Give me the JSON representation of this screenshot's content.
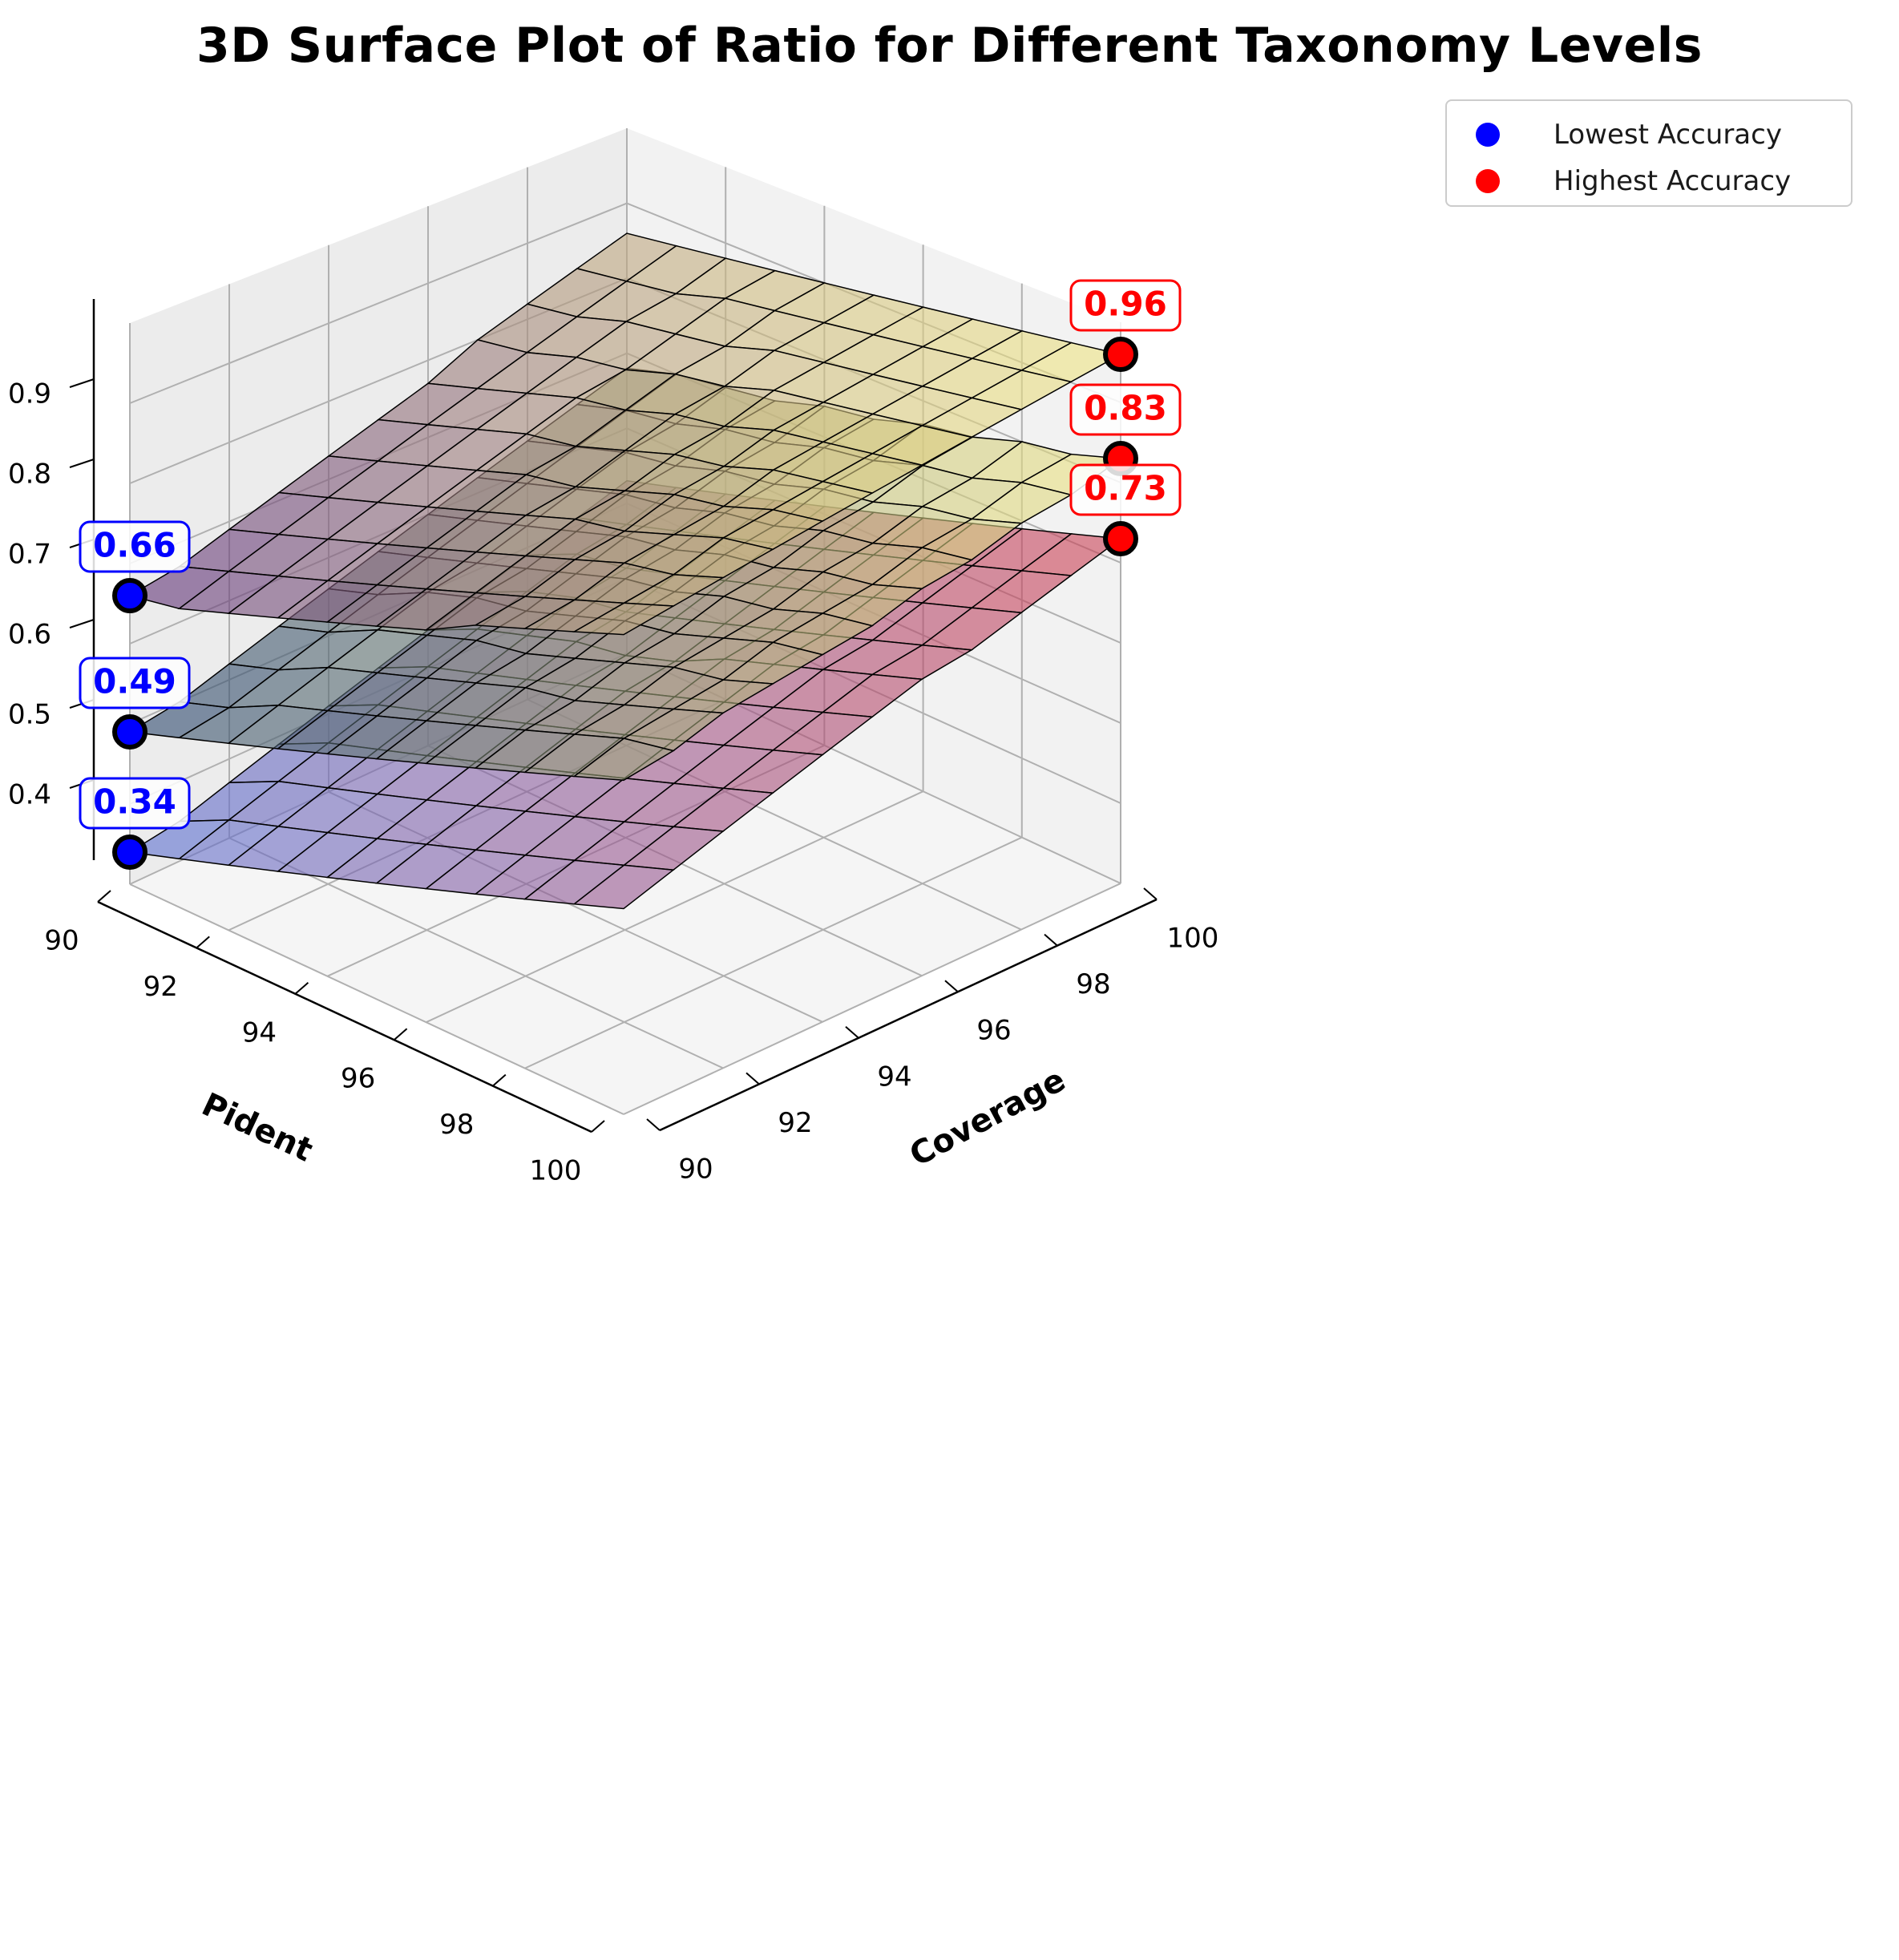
{
  "chart_data": {
    "type": "surface3d",
    "title": "3D Surface Plot of Ratio for Different Taxonomy Levels",
    "xlabel": "Pident",
    "ylabel": "Coverage",
    "zlabel": "",
    "x_ticks": [
      "90",
      "92",
      "94",
      "96",
      "98",
      "100"
    ],
    "y_ticks": [
      "90",
      "92",
      "94",
      "96",
      "98",
      "100"
    ],
    "z_ticks": [
      "0.4",
      "0.5",
      "0.6",
      "0.7",
      "0.8",
      "0.9"
    ],
    "xlim": [
      90,
      100
    ],
    "ylim": [
      90,
      100
    ],
    "zlim": [
      0.3,
      1.0
    ],
    "grid": true,
    "legend_position": "top-right",
    "x": [
      90,
      91,
      92,
      93,
      94,
      95,
      96,
      97,
      98,
      99,
      100
    ],
    "y": [
      90,
      91,
      92,
      93,
      94,
      95,
      96,
      97,
      98,
      99,
      100
    ],
    "series": [
      {
        "colormap": "viridis",
        "colormap_high": "#f2e883",
        "colormap_low": "#5e2f7a",
        "alpha": 0.6,
        "z_min": 0.66,
        "z_max": 0.96,
        "z": [
          [
            0.66,
            0.67,
            0.69,
            0.71,
            0.73,
            0.75,
            0.77,
            0.8,
            0.82,
            0.84,
            0.86
          ],
          [
            0.67,
            0.69,
            0.71,
            0.73,
            0.75,
            0.77,
            0.79,
            0.81,
            0.83,
            0.85,
            0.87
          ],
          [
            0.69,
            0.71,
            0.73,
            0.75,
            0.77,
            0.79,
            0.81,
            0.83,
            0.85,
            0.86,
            0.88
          ],
          [
            0.71,
            0.73,
            0.75,
            0.77,
            0.79,
            0.81,
            0.83,
            0.84,
            0.86,
            0.88,
            0.89
          ],
          [
            0.73,
            0.75,
            0.77,
            0.79,
            0.81,
            0.82,
            0.84,
            0.86,
            0.87,
            0.89,
            0.9
          ],
          [
            0.75,
            0.77,
            0.79,
            0.81,
            0.82,
            0.84,
            0.86,
            0.87,
            0.89,
            0.9,
            0.91
          ],
          [
            0.77,
            0.79,
            0.81,
            0.83,
            0.84,
            0.86,
            0.87,
            0.89,
            0.9,
            0.91,
            0.92
          ],
          [
            0.8,
            0.81,
            0.83,
            0.84,
            0.86,
            0.87,
            0.89,
            0.9,
            0.91,
            0.92,
            0.93
          ],
          [
            0.82,
            0.83,
            0.85,
            0.86,
            0.87,
            0.89,
            0.9,
            0.91,
            0.92,
            0.93,
            0.94
          ],
          [
            0.84,
            0.85,
            0.86,
            0.88,
            0.89,
            0.9,
            0.91,
            0.92,
            0.93,
            0.94,
            0.95
          ],
          [
            0.86,
            0.87,
            0.88,
            0.89,
            0.9,
            0.91,
            0.92,
            0.93,
            0.94,
            0.95,
            0.96
          ]
        ],
        "min_point": {
          "x": 90,
          "y": 90,
          "z": 0.66,
          "label": "0.66"
        },
        "max_point": {
          "x": 100,
          "y": 100,
          "z": 0.96,
          "label": "0.96"
        }
      },
      {
        "colormap": "cividis",
        "colormap_high": "#f2e883",
        "colormap_low": "#27446e",
        "alpha": 0.6,
        "z_min": 0.49,
        "z_max": 0.83,
        "z": [
          [
            0.49,
            0.5,
            0.52,
            0.54,
            0.56,
            0.58,
            0.6,
            0.62,
            0.64,
            0.66,
            0.68
          ],
          [
            0.51,
            0.52,
            0.54,
            0.56,
            0.58,
            0.6,
            0.62,
            0.64,
            0.66,
            0.68,
            0.7
          ],
          [
            0.53,
            0.55,
            0.57,
            0.59,
            0.61,
            0.62,
            0.64,
            0.66,
            0.68,
            0.69,
            0.71
          ],
          [
            0.55,
            0.57,
            0.59,
            0.61,
            0.63,
            0.64,
            0.66,
            0.68,
            0.69,
            0.71,
            0.72
          ],
          [
            0.57,
            0.59,
            0.61,
            0.63,
            0.64,
            0.66,
            0.68,
            0.69,
            0.71,
            0.72,
            0.74
          ],
          [
            0.59,
            0.61,
            0.63,
            0.64,
            0.66,
            0.68,
            0.69,
            0.71,
            0.72,
            0.74,
            0.75
          ],
          [
            0.61,
            0.63,
            0.65,
            0.66,
            0.68,
            0.69,
            0.71,
            0.72,
            0.74,
            0.75,
            0.77
          ],
          [
            0.63,
            0.65,
            0.66,
            0.68,
            0.69,
            0.71,
            0.72,
            0.74,
            0.75,
            0.77,
            0.78
          ],
          [
            0.65,
            0.67,
            0.68,
            0.7,
            0.71,
            0.72,
            0.74,
            0.75,
            0.77,
            0.78,
            0.8
          ],
          [
            0.67,
            0.69,
            0.7,
            0.71,
            0.73,
            0.74,
            0.75,
            0.77,
            0.78,
            0.8,
            0.81
          ],
          [
            0.69,
            0.7,
            0.72,
            0.73,
            0.74,
            0.75,
            0.77,
            0.78,
            0.8,
            0.81,
            0.83
          ]
        ],
        "min_point": {
          "x": 90,
          "y": 90,
          "z": 0.49,
          "label": "0.49"
        },
        "max_point": {
          "x": 100,
          "y": 100,
          "z": 0.83,
          "label": "0.83"
        }
      },
      {
        "colormap": "coolwarm",
        "colormap_high": "#d0404f",
        "colormap_low": "#5a73d6",
        "alpha": 0.6,
        "z_min": 0.34,
        "z_max": 0.73,
        "z": [
          [
            0.34,
            0.35,
            0.37,
            0.39,
            0.41,
            0.43,
            0.45,
            0.47,
            0.49,
            0.51,
            0.53
          ],
          [
            0.36,
            0.38,
            0.4,
            0.42,
            0.44,
            0.46,
            0.48,
            0.5,
            0.52,
            0.53,
            0.55
          ],
          [
            0.38,
            0.4,
            0.42,
            0.44,
            0.46,
            0.48,
            0.5,
            0.52,
            0.53,
            0.55,
            0.57
          ],
          [
            0.4,
            0.42,
            0.44,
            0.46,
            0.48,
            0.5,
            0.52,
            0.53,
            0.55,
            0.57,
            0.59
          ],
          [
            0.42,
            0.44,
            0.46,
            0.48,
            0.5,
            0.52,
            0.53,
            0.55,
            0.57,
            0.59,
            0.61
          ],
          [
            0.44,
            0.46,
            0.48,
            0.5,
            0.52,
            0.54,
            0.55,
            0.57,
            0.59,
            0.61,
            0.63
          ],
          [
            0.46,
            0.48,
            0.5,
            0.52,
            0.54,
            0.56,
            0.58,
            0.59,
            0.61,
            0.63,
            0.65
          ],
          [
            0.48,
            0.5,
            0.52,
            0.54,
            0.56,
            0.58,
            0.6,
            0.61,
            0.63,
            0.65,
            0.67
          ],
          [
            0.5,
            0.52,
            0.54,
            0.56,
            0.58,
            0.6,
            0.62,
            0.63,
            0.65,
            0.67,
            0.69
          ],
          [
            0.52,
            0.54,
            0.56,
            0.58,
            0.6,
            0.62,
            0.64,
            0.65,
            0.67,
            0.69,
            0.71
          ],
          [
            0.54,
            0.56,
            0.58,
            0.6,
            0.62,
            0.64,
            0.66,
            0.67,
            0.69,
            0.71,
            0.73
          ]
        ],
        "min_point": {
          "x": 90,
          "y": 90,
          "z": 0.34,
          "label": "0.34"
        },
        "max_point": {
          "x": 100,
          "y": 100,
          "z": 0.73,
          "label": "0.73"
        }
      }
    ],
    "legend": [
      {
        "label": "Lowest Accuracy",
        "color": "#0000ff"
      },
      {
        "label": "Highest Accuracy",
        "color": "#ff0000"
      }
    ],
    "annotation_colors": {
      "low": "#0000ff",
      "high": "#ff0000"
    }
  }
}
